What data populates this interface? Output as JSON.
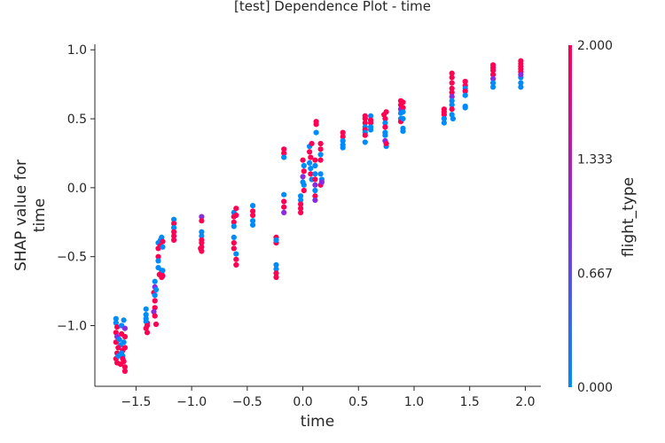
{
  "chart_data": {
    "type": "scatter",
    "title": "[test] Dependence Plot - time",
    "xlabel": "time",
    "ylabel_line1": "SHAP value for",
    "ylabel_line2": "time",
    "xlim": [
      -1.87,
      2.14
    ],
    "ylim": [
      -1.44,
      1.04
    ],
    "xticks": [
      -1.5,
      -1.0,
      -0.5,
      0.0,
      0.5,
      1.0,
      1.5,
      2.0
    ],
    "xtick_labels": [
      "−1.5",
      "−1.0",
      "−0.5",
      "0.0",
      "0.5",
      "1.0",
      "1.5",
      "2.0"
    ],
    "yticks": [
      1.0,
      0.5,
      0.0,
      -0.5,
      -1.0
    ],
    "ytick_labels": [
      "1.0",
      "0.5",
      "0.0",
      "−0.5",
      "−1.0"
    ],
    "colorbar": {
      "label": "flight_type",
      "ticks": [
        2.0,
        1.333,
        0.667,
        0.0
      ],
      "tick_labels": [
        "2.000",
        "1.333",
        "0.667",
        "0.000"
      ],
      "colors": [
        "#008bfb",
        "#8a2be2",
        "#ff0052"
      ]
    },
    "points": [
      [
        -1.68,
        -0.95,
        0
      ],
      [
        -1.68,
        -0.98,
        0
      ],
      [
        -1.67,
        -1.01,
        2
      ],
      [
        -1.68,
        -1.05,
        2
      ],
      [
        -1.67,
        -1.08,
        1
      ],
      [
        -1.68,
        -1.12,
        2
      ],
      [
        -1.67,
        -1.2,
        2
      ],
      [
        -1.68,
        -1.24,
        2
      ],
      [
        -1.67,
        -1.27,
        2
      ],
      [
        -1.66,
        -1.22,
        0
      ],
      [
        -1.65,
        -1.1,
        0
      ],
      [
        -1.64,
        -1.14,
        0
      ],
      [
        -1.63,
        -1.0,
        0
      ],
      [
        -1.63,
        -1.06,
        2
      ],
      [
        -1.62,
        -1.18,
        2
      ],
      [
        -1.62,
        -1.22,
        0
      ],
      [
        -1.61,
        -1.26,
        2
      ],
      [
        -1.6,
        -1.3,
        2
      ],
      [
        -1.6,
        -1.33,
        2
      ],
      [
        -1.61,
        -0.96,
        0
      ],
      [
        -1.6,
        -1.02,
        1
      ],
      [
        -1.6,
        -1.08,
        2
      ],
      [
        -1.61,
        -1.12,
        0
      ],
      [
        -1.6,
        -1.16,
        2
      ],
      [
        -1.62,
        -1.24,
        2
      ],
      [
        -1.66,
        -1.16,
        2
      ],
      [
        -1.64,
        -1.28,
        2
      ],
      [
        -1.63,
        -1.2,
        0
      ],
      [
        -1.41,
        -0.88,
        0
      ],
      [
        -1.41,
        -0.92,
        0
      ],
      [
        -1.41,
        -0.95,
        0
      ],
      [
        -1.4,
        -0.98,
        2
      ],
      [
        -1.41,
        -1.02,
        2
      ],
      [
        -1.4,
        -1.05,
        2
      ],
      [
        -1.41,
        -0.97,
        0
      ],
      [
        -1.4,
        -1.0,
        2
      ],
      [
        -1.33,
        -0.68,
        0
      ],
      [
        -1.33,
        -0.72,
        1
      ],
      [
        -1.34,
        -0.76,
        2
      ],
      [
        -1.33,
        -0.82,
        2
      ],
      [
        -1.33,
        -0.87,
        2
      ],
      [
        -1.34,
        -0.9,
        1
      ],
      [
        -1.33,
        -0.93,
        2
      ],
      [
        -1.32,
        -0.99,
        2
      ],
      [
        -1.32,
        -0.74,
        0
      ],
      [
        -1.33,
        -0.78,
        0
      ],
      [
        -1.3,
        -0.4,
        0
      ],
      [
        -1.3,
        -0.44,
        2
      ],
      [
        -1.3,
        -0.5,
        2
      ],
      [
        -1.3,
        -0.53,
        0
      ],
      [
        -1.3,
        -0.58,
        0
      ],
      [
        -1.29,
        -0.63,
        2
      ],
      [
        -1.28,
        -0.38,
        0
      ],
      [
        -1.28,
        -0.42,
        2
      ],
      [
        -1.27,
        -0.36,
        0
      ],
      [
        -1.27,
        -0.6,
        0
      ],
      [
        -1.27,
        -0.62,
        2
      ],
      [
        -1.27,
        -0.65,
        2
      ],
      [
        -1.26,
        -0.39,
        2
      ],
      [
        -1.26,
        -0.43,
        0
      ],
      [
        -1.26,
        -0.6,
        0
      ],
      [
        -1.26,
        -0.64,
        2
      ],
      [
        -1.16,
        -0.23,
        0
      ],
      [
        -1.16,
        -0.26,
        2
      ],
      [
        -1.16,
        -0.29,
        0
      ],
      [
        -1.16,
        -0.32,
        2
      ],
      [
        -1.16,
        -0.35,
        2
      ],
      [
        -1.16,
        -0.38,
        2
      ],
      [
        -0.91,
        -0.21,
        1
      ],
      [
        -0.91,
        -0.24,
        2
      ],
      [
        -0.91,
        -0.32,
        0
      ],
      [
        -0.91,
        -0.35,
        0
      ],
      [
        -0.91,
        -0.38,
        2
      ],
      [
        -0.91,
        -0.4,
        2
      ],
      [
        -0.91,
        -0.43,
        2
      ],
      [
        -0.92,
        -0.44,
        2
      ],
      [
        -0.91,
        -0.46,
        2
      ],
      [
        -0.62,
        -0.18,
        0
      ],
      [
        -0.62,
        -0.21,
        2
      ],
      [
        -0.62,
        -0.25,
        2
      ],
      [
        -0.62,
        -0.28,
        0
      ],
      [
        -0.62,
        -0.36,
        0
      ],
      [
        -0.62,
        -0.4,
        2
      ],
      [
        -0.62,
        -0.44,
        2
      ],
      [
        -0.6,
        -0.15,
        2
      ],
      [
        -0.6,
        -0.2,
        2
      ],
      [
        -0.6,
        -0.48,
        0
      ],
      [
        -0.6,
        -0.52,
        2
      ],
      [
        -0.6,
        -0.56,
        2
      ],
      [
        -0.45,
        -0.13,
        0
      ],
      [
        -0.45,
        -0.17,
        2
      ],
      [
        -0.45,
        -0.2,
        2
      ],
      [
        -0.45,
        -0.24,
        0
      ],
      [
        -0.45,
        -0.27,
        0
      ],
      [
        -0.24,
        -0.36,
        2
      ],
      [
        -0.24,
        -0.4,
        2
      ],
      [
        -0.24,
        -0.38,
        0
      ],
      [
        -0.24,
        -0.56,
        0
      ],
      [
        -0.24,
        -0.59,
        0
      ],
      [
        -0.24,
        -0.62,
        2
      ],
      [
        -0.24,
        -0.65,
        2
      ],
      [
        -0.17,
        0.28,
        2
      ],
      [
        -0.17,
        0.25,
        2
      ],
      [
        -0.17,
        0.22,
        0
      ],
      [
        -0.17,
        -0.05,
        0
      ],
      [
        -0.17,
        -0.1,
        2
      ],
      [
        -0.17,
        -0.14,
        2
      ],
      [
        -0.17,
        -0.18,
        1
      ],
      [
        -0.02,
        -0.06,
        0
      ],
      [
        -0.02,
        -0.09,
        0
      ],
      [
        -0.02,
        -0.12,
        2
      ],
      [
        -0.02,
        -0.15,
        2
      ],
      [
        -0.02,
        -0.18,
        2
      ],
      [
        0.0,
        0.2,
        2
      ],
      [
        0.01,
        0.16,
        0
      ],
      [
        0.01,
        0.12,
        2
      ],
      [
        0.0,
        0.08,
        1
      ],
      [
        0.0,
        0.04,
        0
      ],
      [
        0.01,
        0.02,
        0
      ],
      [
        0.01,
        -0.02,
        2
      ],
      [
        0.06,
        0.3,
        0
      ],
      [
        0.06,
        0.26,
        2
      ],
      [
        0.07,
        0.22,
        2
      ],
      [
        0.06,
        0.18,
        0
      ],
      [
        0.07,
        0.14,
        0
      ],
      [
        0.07,
        0.1,
        2
      ],
      [
        0.08,
        0.06,
        0
      ],
      [
        0.08,
        0.32,
        2
      ],
      [
        0.11,
        0.2,
        2
      ],
      [
        0.11,
        0.16,
        0
      ],
      [
        0.11,
        0.1,
        0
      ],
      [
        0.11,
        0.06,
        2
      ],
      [
        0.11,
        0.02,
        1
      ],
      [
        0.11,
        -0.02,
        0
      ],
      [
        0.11,
        -0.06,
        2
      ],
      [
        0.11,
        -0.09,
        1
      ],
      [
        0.12,
        0.4,
        0
      ],
      [
        0.12,
        0.46,
        2
      ],
      [
        0.12,
        0.48,
        2
      ],
      [
        0.16,
        0.32,
        2
      ],
      [
        0.16,
        0.28,
        2
      ],
      [
        0.16,
        0.24,
        0
      ],
      [
        0.16,
        0.2,
        2
      ],
      [
        0.16,
        0.1,
        0
      ],
      [
        0.17,
        0.06,
        0
      ],
      [
        0.16,
        0.02,
        2
      ],
      [
        0.17,
        0.04,
        1
      ],
      [
        0.36,
        0.4,
        2
      ],
      [
        0.36,
        0.37,
        2
      ],
      [
        0.36,
        0.34,
        0
      ],
      [
        0.36,
        0.31,
        0
      ],
      [
        0.36,
        0.29,
        0
      ],
      [
        0.56,
        0.52,
        2
      ],
      [
        0.56,
        0.5,
        2
      ],
      [
        0.56,
        0.47,
        2
      ],
      [
        0.56,
        0.44,
        0
      ],
      [
        0.56,
        0.42,
        2
      ],
      [
        0.56,
        0.4,
        0
      ],
      [
        0.56,
        0.38,
        2
      ],
      [
        0.56,
        0.33,
        0
      ],
      [
        0.61,
        0.52,
        0
      ],
      [
        0.61,
        0.49,
        2
      ],
      [
        0.61,
        0.47,
        2
      ],
      [
        0.61,
        0.44,
        0
      ],
      [
        0.61,
        0.42,
        0
      ],
      [
        0.73,
        0.53,
        2
      ],
      [
        0.74,
        0.5,
        2
      ],
      [
        0.74,
        0.47,
        0
      ],
      [
        0.74,
        0.44,
        2
      ],
      [
        0.74,
        0.4,
        0
      ],
      [
        0.74,
        0.38,
        0
      ],
      [
        0.74,
        0.34,
        1
      ],
      [
        0.75,
        0.3,
        0
      ],
      [
        0.75,
        0.32,
        2
      ],
      [
        0.75,
        0.55,
        2
      ],
      [
        0.88,
        0.63,
        2
      ],
      [
        0.88,
        0.6,
        2
      ],
      [
        0.88,
        0.57,
        1
      ],
      [
        0.88,
        0.54,
        0
      ],
      [
        0.88,
        0.5,
        0
      ],
      [
        0.88,
        0.48,
        2
      ],
      [
        0.9,
        0.62,
        2
      ],
      [
        0.9,
        0.58,
        2
      ],
      [
        0.9,
        0.55,
        0
      ],
      [
        0.9,
        0.5,
        0
      ],
      [
        0.9,
        0.43,
        0
      ],
      [
        0.9,
        0.41,
        0
      ],
      [
        1.27,
        0.57,
        2
      ],
      [
        1.27,
        0.55,
        2
      ],
      [
        1.27,
        0.53,
        2
      ],
      [
        1.27,
        0.5,
        0
      ],
      [
        1.27,
        0.47,
        0
      ],
      [
        1.34,
        0.83,
        2
      ],
      [
        1.34,
        0.8,
        2
      ],
      [
        1.34,
        0.76,
        2
      ],
      [
        1.34,
        0.72,
        2
      ],
      [
        1.34,
        0.69,
        2
      ],
      [
        1.34,
        0.66,
        1
      ],
      [
        1.34,
        0.63,
        0
      ],
      [
        1.34,
        0.6,
        0
      ],
      [
        1.34,
        0.57,
        2
      ],
      [
        1.34,
        0.53,
        0
      ],
      [
        1.35,
        0.5,
        0
      ],
      [
        1.46,
        0.77,
        2
      ],
      [
        1.46,
        0.74,
        2
      ],
      [
        1.46,
        0.72,
        0
      ],
      [
        1.46,
        0.7,
        2
      ],
      [
        1.46,
        0.67,
        0
      ],
      [
        1.46,
        0.59,
        0
      ],
      [
        1.46,
        0.58,
        0
      ],
      [
        1.71,
        0.89,
        2
      ],
      [
        1.71,
        0.87,
        2
      ],
      [
        1.71,
        0.85,
        2
      ],
      [
        1.71,
        0.82,
        2
      ],
      [
        1.71,
        0.79,
        1
      ],
      [
        1.71,
        0.76,
        0
      ],
      [
        1.71,
        0.73,
        0
      ],
      [
        1.96,
        0.92,
        2
      ],
      [
        1.96,
        0.9,
        2
      ],
      [
        1.96,
        0.88,
        2
      ],
      [
        1.96,
        0.86,
        2
      ],
      [
        1.96,
        0.84,
        2
      ],
      [
        1.96,
        0.8,
        0
      ],
      [
        1.96,
        0.76,
        0
      ],
      [
        1.96,
        0.73,
        0
      ],
      [
        1.96,
        0.82,
        1
      ]
    ]
  }
}
